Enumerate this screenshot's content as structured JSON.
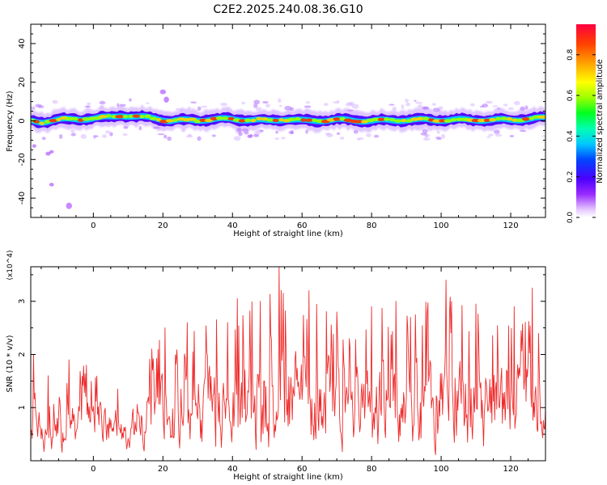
{
  "title": "C2E2.2025.240.08.36.G10",
  "spectrogram": {
    "type": "heatmap",
    "xlabel": "Height of straight line (km)",
    "ylabel": "Frequency (Hz)",
    "xlim": [
      -18,
      130
    ],
    "ylim": [
      -50,
      50
    ],
    "xticks": [
      0,
      20,
      40,
      60,
      80,
      100,
      120
    ],
    "xtick_labels": [
      "0",
      "20",
      "40",
      "60",
      "80",
      "100",
      "120"
    ],
    "yticks": [
      -40,
      -20,
      0,
      20,
      40
    ],
    "ytick_labels": [
      "-40",
      "-20",
      "0",
      "20",
      "40"
    ],
    "band": {
      "center_freq": [
        [
          -18,
          0.0
        ],
        [
          -15,
          -0.5
        ],
        [
          -10,
          0.5
        ],
        [
          -5,
          1.0
        ],
        [
          0,
          1.2
        ],
        [
          5,
          2.0
        ],
        [
          8,
          3.0
        ],
        [
          12,
          2.0
        ],
        [
          18,
          1.5
        ],
        [
          22,
          0.0
        ],
        [
          30,
          0.5
        ],
        [
          40,
          1.0
        ],
        [
          50,
          0.0
        ],
        [
          55,
          1.0
        ],
        [
          60,
          0.0
        ],
        [
          70,
          0.5
        ],
        [
          80,
          0.0
        ],
        [
          90,
          0.5
        ],
        [
          100,
          0.5
        ],
        [
          110,
          0.5
        ],
        [
          120,
          0.5
        ],
        [
          130,
          1.5
        ]
      ],
      "core_halfwidth_hz": 1.5,
      "spread_halfwidth_hz": 4.5
    },
    "outliers": [
      [
        -17,
        -13
      ],
      [
        -13,
        -17
      ],
      [
        -12,
        -16
      ],
      [
        -12,
        -33
      ],
      [
        -7,
        -44
      ],
      [
        20,
        15
      ],
      [
        21,
        11
      ],
      [
        45,
        -8
      ]
    ]
  },
  "colorbar": {
    "label": "Normalized spectral amplitude",
    "range": [
      0.0,
      0.95
    ],
    "ticks": [
      0.0,
      0.2,
      0.4,
      0.6,
      0.8
    ],
    "tick_labels": [
      "0.0",
      "0.2",
      "0.4",
      "0.6",
      "0.8"
    ]
  },
  "snr_chart": {
    "type": "line",
    "xlabel": "Height of straight line (km)",
    "ylabel": "SNR (10 * v/v)",
    "scale_label": "(x10^4)",
    "xlim": [
      -18,
      130
    ],
    "ylim": [
      0,
      3.65
    ],
    "xticks": [
      0,
      20,
      40,
      60,
      80,
      100,
      120
    ],
    "xtick_labels": [
      "0",
      "20",
      "40",
      "60",
      "80",
      "100",
      "120"
    ],
    "yticks": [
      1,
      2,
      3
    ],
    "ytick_labels": [
      "1",
      "2",
      "3"
    ],
    "color": "#ee2b2b",
    "step_km": 0.2,
    "envelope": [
      [
        -18,
        0.4,
        0.7
      ],
      [
        -17,
        0.5,
        2.0
      ],
      [
        -16,
        0.3,
        2.0
      ],
      [
        -15,
        0.1,
        1.0
      ],
      [
        -10,
        0.1,
        1.2
      ],
      [
        -5,
        0.3,
        1.9
      ],
      [
        0,
        0.3,
        1.8
      ],
      [
        10,
        0.2,
        1.5
      ],
      [
        20,
        0.15,
        2.5
      ],
      [
        30,
        0.05,
        2.6
      ],
      [
        40,
        0.05,
        3.0
      ],
      [
        50,
        0.05,
        3.1
      ],
      [
        53.5,
        0.05,
        3.65
      ],
      [
        60,
        0.05,
        3.2
      ],
      [
        70,
        0.05,
        2.8
      ],
      [
        80,
        0.05,
        2.9
      ],
      [
        90,
        0.05,
        3.0
      ],
      [
        100,
        0.05,
        3.4
      ],
      [
        110,
        0.05,
        3.0
      ],
      [
        120,
        0.05,
        2.9
      ],
      [
        126,
        0.05,
        3.25
      ],
      [
        130,
        0.3,
        2.5
      ]
    ],
    "peaks": [
      [
        -17.2,
        2.0
      ],
      [
        -13,
        1.6
      ],
      [
        -7,
        1.9
      ],
      [
        -2,
        1.8
      ],
      [
        20.5,
        2.5
      ],
      [
        27,
        2.6
      ],
      [
        41.5,
        3.05
      ],
      [
        48,
        3.0
      ],
      [
        53.5,
        3.65
      ],
      [
        62,
        3.2
      ],
      [
        70,
        2.8
      ],
      [
        80,
        2.9
      ],
      [
        87,
        3.0
      ],
      [
        101.5,
        3.4
      ],
      [
        110,
        2.95
      ],
      [
        121,
        2.9
      ],
      [
        126.3,
        3.25
      ]
    ]
  },
  "colors": {
    "snr_line": "#ee2b2b",
    "axes": "#000000",
    "background": "#ffffff"
  }
}
